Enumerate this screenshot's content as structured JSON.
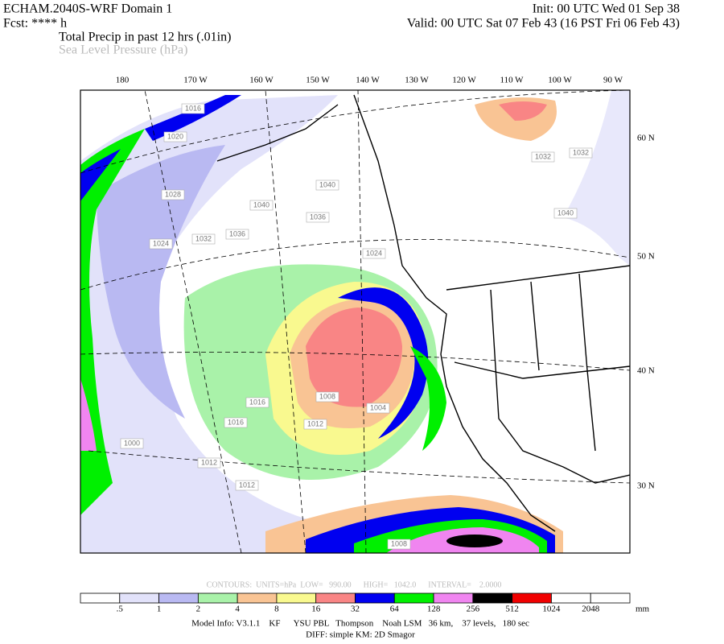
{
  "header": {
    "title": "ECHAM.2040S-WRF Domain 1",
    "init": "Init: 00 UTC Wed 01 Sep 38",
    "fcst": "Fcst: **** h",
    "valid": "Valid: 00 UTC Sat 07 Feb 43 (16 PST Fri 06 Feb 43)",
    "field_1": "Total Precip in past 12 hrs (.01in)",
    "field_2": "Sea Level Pressure (hPa)"
  },
  "map": {
    "lon_labels": [
      "180",
      "170 W",
      "160 W",
      "150 W",
      "140 W",
      "130 W",
      "120 W",
      "110 W",
      "100 W",
      "90 W"
    ],
    "lat_labels": [
      "60 N",
      "50 N",
      "40 N",
      "30 N"
    ],
    "contour_labels": [
      "1016",
      "1020",
      "1028",
      "1024",
      "1036",
      "1040",
      "1040",
      "1032",
      "1036",
      "1024",
      "1032",
      "1032",
      "1040",
      "1008",
      "1016",
      "1016",
      "1012",
      "1012",
      "1012",
      "1008",
      "1004",
      "1000"
    ]
  },
  "contour_info": "CONTOURS:  UNITS=hPa  LOW=   990.00      HIGH=   1042.0      INTERVAL=    2.0000",
  "colorbar": {
    "colors": [
      "#ffffff",
      "#e2e2fa",
      "#b9b9f2",
      "#a9f2a9",
      "#f9c494",
      "#f9f98f",
      "#f98585",
      "#0000f0",
      "#00f000",
      "#f085f0",
      "#000000",
      "#f00000",
      "#ffffff",
      "#ffffff"
    ],
    "labels": [
      ".5",
      "1",
      "2",
      "4",
      "8",
      "16",
      "32",
      "64",
      "128",
      "256",
      "512",
      "1024",
      "2048"
    ],
    "unit": "mm"
  },
  "footer": {
    "model_info": "Model Info: V3.1.1    KF      YSU PBL   Thompson    Noah LSM   36 km,    37 levels,   180 sec",
    "diff": "DIFF: simple KM: 2D Smagor"
  }
}
